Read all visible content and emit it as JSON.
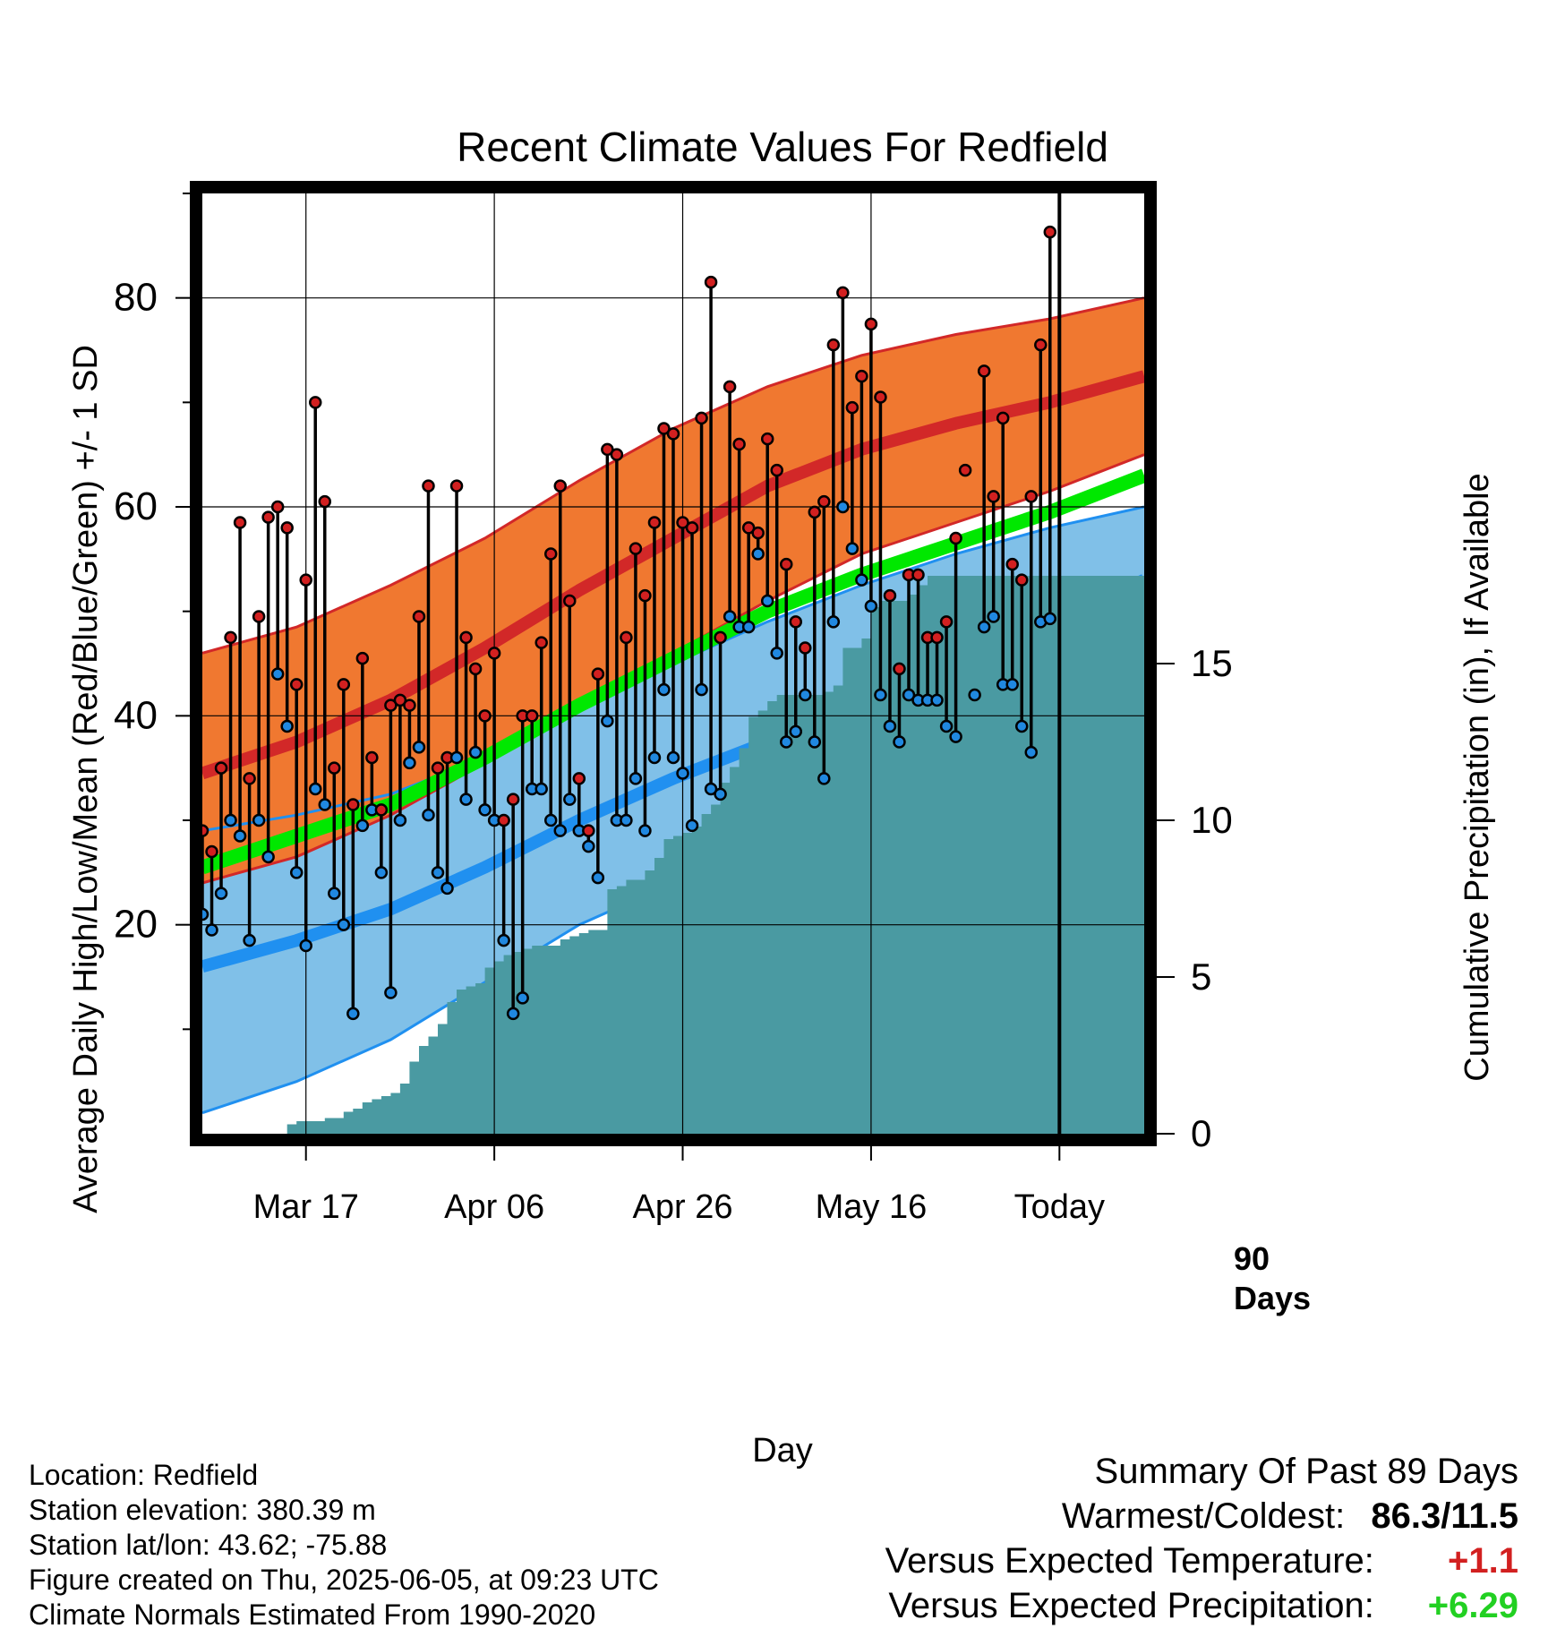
{
  "chart_data": {
    "type": "line",
    "title": "Recent Climate Values For Redfield",
    "xlabel": "Day",
    "ylabel": "Average Daily High/Low/Mean (Red/Blue/Green) +/- 1 SD",
    "y2label": "Cumulative Precipitation (in), If Available",
    "x_ticks": [
      "Mar 17",
      "Apr 06",
      "Apr 26",
      "May 16",
      "Today"
    ],
    "x_tick_days": [
      11,
      31,
      51,
      71,
      91
    ],
    "x_range_days": [
      0,
      100
    ],
    "ylim": [
      0,
      90
    ],
    "y_ticks": [
      20,
      40,
      60,
      80
    ],
    "y2lim": [
      0,
      30
    ],
    "y2_ticks": [
      0,
      5,
      10,
      15
    ],
    "grid": true,
    "today_marker": {
      "day": 91,
      "label_line1": "90",
      "label_line2": "Days"
    },
    "normals": {
      "days": [
        0,
        10,
        20,
        30,
        40,
        50,
        60,
        70,
        80,
        90,
        100
      ],
      "high_mean": [
        34.5,
        37.5,
        41.5,
        46.5,
        52,
        57,
        62,
        65.5,
        68,
        70,
        72.5
      ],
      "high_sd_upper": [
        46,
        48.5,
        52.5,
        57,
        62.5,
        67.5,
        71.5,
        74.5,
        76.5,
        78,
        80
      ],
      "high_sd_lower": [
        24,
        26.5,
        30.5,
        35.5,
        41,
        46,
        51,
        55.5,
        58.5,
        61.5,
        65
      ],
      "low_mean": [
        16,
        18.5,
        21.5,
        25.5,
        30,
        34,
        37.5,
        41.5,
        45,
        49,
        53
      ],
      "low_sd_upper": [
        29,
        30.5,
        32.5,
        36,
        41,
        45,
        49,
        52.5,
        55.5,
        58,
        60
      ],
      "low_sd_lower": [
        2,
        5,
        9,
        14.5,
        20,
        24,
        27.5,
        30.5,
        34,
        39.5,
        46
      ],
      "mean": [
        25.5,
        28.5,
        31.5,
        36,
        41,
        45.5,
        50,
        53.5,
        56.5,
        59.5,
        63
      ]
    },
    "observed_days": [
      0,
      1,
      2,
      3,
      4,
      5,
      6,
      7,
      8,
      9,
      10,
      11,
      12,
      13,
      14,
      15,
      16,
      17,
      18,
      19,
      20,
      21,
      22,
      23,
      24,
      25,
      26,
      27,
      28,
      29,
      30,
      31,
      32,
      33,
      34,
      35,
      36,
      37,
      38,
      39,
      40,
      41,
      42,
      43,
      44,
      45,
      46,
      47,
      48,
      49,
      50,
      51,
      52,
      53,
      54,
      55,
      56,
      57,
      58,
      59,
      60,
      61,
      62,
      63,
      64,
      65,
      66,
      67,
      68,
      69,
      70,
      71,
      72,
      73,
      74,
      75,
      76,
      77,
      78,
      79,
      80,
      81,
      82,
      83,
      84,
      85,
      86,
      87,
      88,
      89
    ],
    "observed_high": [
      29,
      27,
      35,
      47.5,
      58.5,
      34,
      49.5,
      59,
      60,
      58,
      43,
      53,
      70,
      60.5,
      35,
      43,
      31.5,
      45.5,
      36,
      31,
      41,
      41.5,
      41,
      49.5,
      62,
      35,
      36,
      62,
      47.5,
      44.5,
      40,
      46,
      30,
      32,
      40,
      40,
      47,
      55.5,
      62,
      51,
      34,
      29,
      44,
      65.5,
      65,
      47.5,
      56,
      51.5,
      58.5,
      67.5,
      67,
      58.5,
      58,
      68.5,
      81.5,
      47.5,
      71.5,
      66,
      58,
      57.5,
      66.5,
      63.5,
      54.5,
      49,
      46.5,
      59.5,
      60.5,
      75.5,
      80.5,
      69.5,
      72.5,
      77.5,
      70.5,
      51.5,
      44.5,
      53.5,
      53.5,
      47.5,
      47.5,
      49,
      57,
      63.5,
      null,
      73,
      61,
      68.5,
      54.5,
      53,
      61,
      75.5
    ],
    "observed_low": [
      21,
      19.5,
      23,
      30,
      28.5,
      18.5,
      30,
      26.5,
      44,
      39,
      25,
      18,
      33,
      31.5,
      23,
      20,
      11.5,
      29.5,
      31,
      25,
      13.5,
      30,
      35.5,
      37,
      30.5,
      25,
      23.5,
      36,
      32,
      36.5,
      31,
      30,
      18.5,
      11.5,
      13,
      33,
      33,
      30,
      29,
      32,
      29,
      27.5,
      24.5,
      39.5,
      30,
      30,
      34,
      29,
      36,
      42.5,
      36,
      34.5,
      29.5,
      42.5,
      33,
      32.5,
      49.5,
      48.5,
      48.5,
      55.5,
      51,
      46,
      37.5,
      38.5,
      42,
      37.5,
      34,
      49,
      60,
      56,
      53,
      50.5,
      42,
      39,
      37.5,
      42,
      41.5,
      41.5,
      41.5,
      39,
      38,
      null,
      42,
      48.5,
      49.5,
      43,
      43,
      39,
      36.5,
      49
    ],
    "extra_point": {
      "day": 90,
      "high": 86.3,
      "low": 49.3
    },
    "precip_days": [
      9,
      10,
      11,
      12,
      13,
      14,
      15,
      16,
      17,
      18,
      19,
      20,
      21,
      22,
      23,
      24,
      25,
      26,
      27,
      28,
      29,
      30,
      31,
      32,
      33,
      34,
      35,
      36,
      37,
      38,
      39,
      40,
      41,
      42,
      43,
      44,
      45,
      46,
      47,
      48,
      49,
      50,
      51,
      52,
      53,
      54,
      55,
      56,
      57,
      58,
      59,
      60,
      61,
      62,
      63,
      64,
      65,
      66,
      67,
      68,
      69,
      70,
      71,
      72,
      73,
      74,
      75,
      76,
      77,
      78,
      79,
      80,
      81,
      82,
      83,
      84,
      85,
      86,
      87,
      88,
      89,
      90,
      100
    ],
    "precip_cum": [
      0.3,
      0.4,
      0.4,
      0.4,
      0.5,
      0.5,
      0.7,
      0.8,
      1.0,
      1.1,
      1.2,
      1.3,
      1.6,
      2.3,
      2.8,
      3.1,
      3.5,
      4.2,
      4.6,
      4.7,
      4.8,
      5.3,
      5.5,
      5.7,
      5.8,
      5.9,
      6.0,
      6.0,
      6.0,
      6.2,
      6.3,
      6.4,
      6.5,
      6.5,
      7.8,
      7.9,
      8.1,
      8.1,
      8.4,
      8.8,
      9.4,
      9.5,
      9.6,
      9.8,
      10.2,
      10.5,
      11.2,
      11.7,
      12.3,
      13.3,
      13.5,
      13.8,
      14.0,
      14.0,
      14.0,
      14.0,
      14.0,
      14.1,
      14.3,
      15.5,
      15.5,
      15.8,
      16.8,
      17.0,
      17.0,
      17.0,
      17.2,
      17.5,
      17.8,
      17.8,
      17.8,
      17.8,
      17.8,
      17.8,
      17.8,
      17.8,
      17.8,
      17.8,
      17.8,
      17.8,
      17.8,
      17.8,
      17.8
    ]
  },
  "footer": {
    "location": "Location: Redfield",
    "elevation": "Station elevation: 380.39 m",
    "latlon": "Station lat/lon: 43.62; -75.88",
    "created": "Figure created on Thu, 2025-06-05, at 09:23 UTC",
    "normals_note": "Climate Normals Estimated From 1990-2020"
  },
  "summary": {
    "title": "Summary Of Past 89 Days",
    "warm_cold_label": "Warmest/Coldest:",
    "warm_cold_value": "86.3/11.5",
    "temp_label": "Versus Expected Temperature:",
    "temp_value": "+1.1",
    "precip_label": "Versus Expected Precipitation:",
    "precip_value": "+6.29"
  },
  "colors": {
    "high_band": "#f07830",
    "high_line": "#d22828",
    "low_band": "#80c0e8",
    "low_line": "#2090f0",
    "mean_line": "#00e800",
    "precip_fill": "#4a9aa2",
    "high_dot": "#d22020",
    "low_dot": "#2088e0",
    "temp_anomaly": "#d22020",
    "precip_anomaly": "#22d022"
  }
}
